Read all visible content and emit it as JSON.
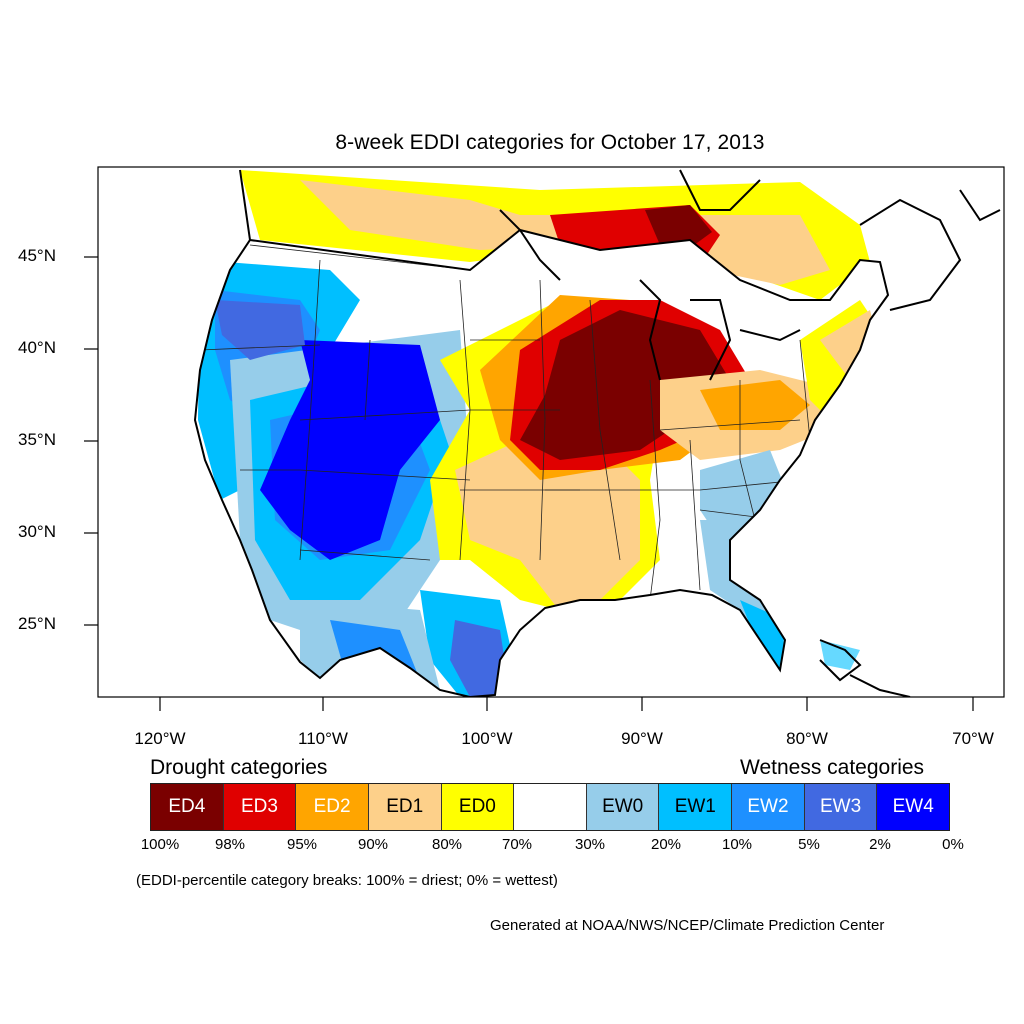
{
  "title": "8-week EDDI categories for October 17, 2013",
  "lat_labels": [
    "45°N",
    "40°N",
    "35°N",
    "30°N",
    "25°N"
  ],
  "lon_labels": [
    "120°W",
    "110°W",
    "100°W",
    "90°W",
    "80°W",
    "70°W"
  ],
  "legend": {
    "drought_heading": "Drought categories",
    "wetness_heading": "Wetness categories",
    "categories": [
      {
        "label": "ED4",
        "color": "#7a0000",
        "text_color": "#ffffff"
      },
      {
        "label": "ED3",
        "color": "#e00000",
        "text_color": "#ffffff"
      },
      {
        "label": "ED2",
        "color": "#ffa500",
        "text_color": "#ffffff"
      },
      {
        "label": "ED1",
        "color": "#fdd08a",
        "text_color": "#000000"
      },
      {
        "label": "ED0",
        "color": "#ffff00",
        "text_color": "#000000"
      },
      {
        "label": "",
        "color": "#ffffff",
        "text_color": "#000000"
      },
      {
        "label": "EW0",
        "color": "#96cdea",
        "text_color": "#000000"
      },
      {
        "label": "EW1",
        "color": "#00bfff",
        "text_color": "#000000"
      },
      {
        "label": "EW2",
        "color": "#1e90ff",
        "text_color": "#ffffff"
      },
      {
        "label": "EW3",
        "color": "#4169e1",
        "text_color": "#ffffff"
      },
      {
        "label": "EW4",
        "color": "#0000ff",
        "text_color": "#ffffff"
      }
    ],
    "breaks": [
      "100%",
      "98%",
      "95%",
      "90%",
      "80%",
      "70%",
      "30%",
      "20%",
      "10%",
      "5%",
      "2%",
      "0%"
    ]
  },
  "note": "(EDDI-percentile category breaks: 100% = driest; 0% = wettest)",
  "credit": "Generated at NOAA/NWS/NCEP/Climate Prediction Center"
}
